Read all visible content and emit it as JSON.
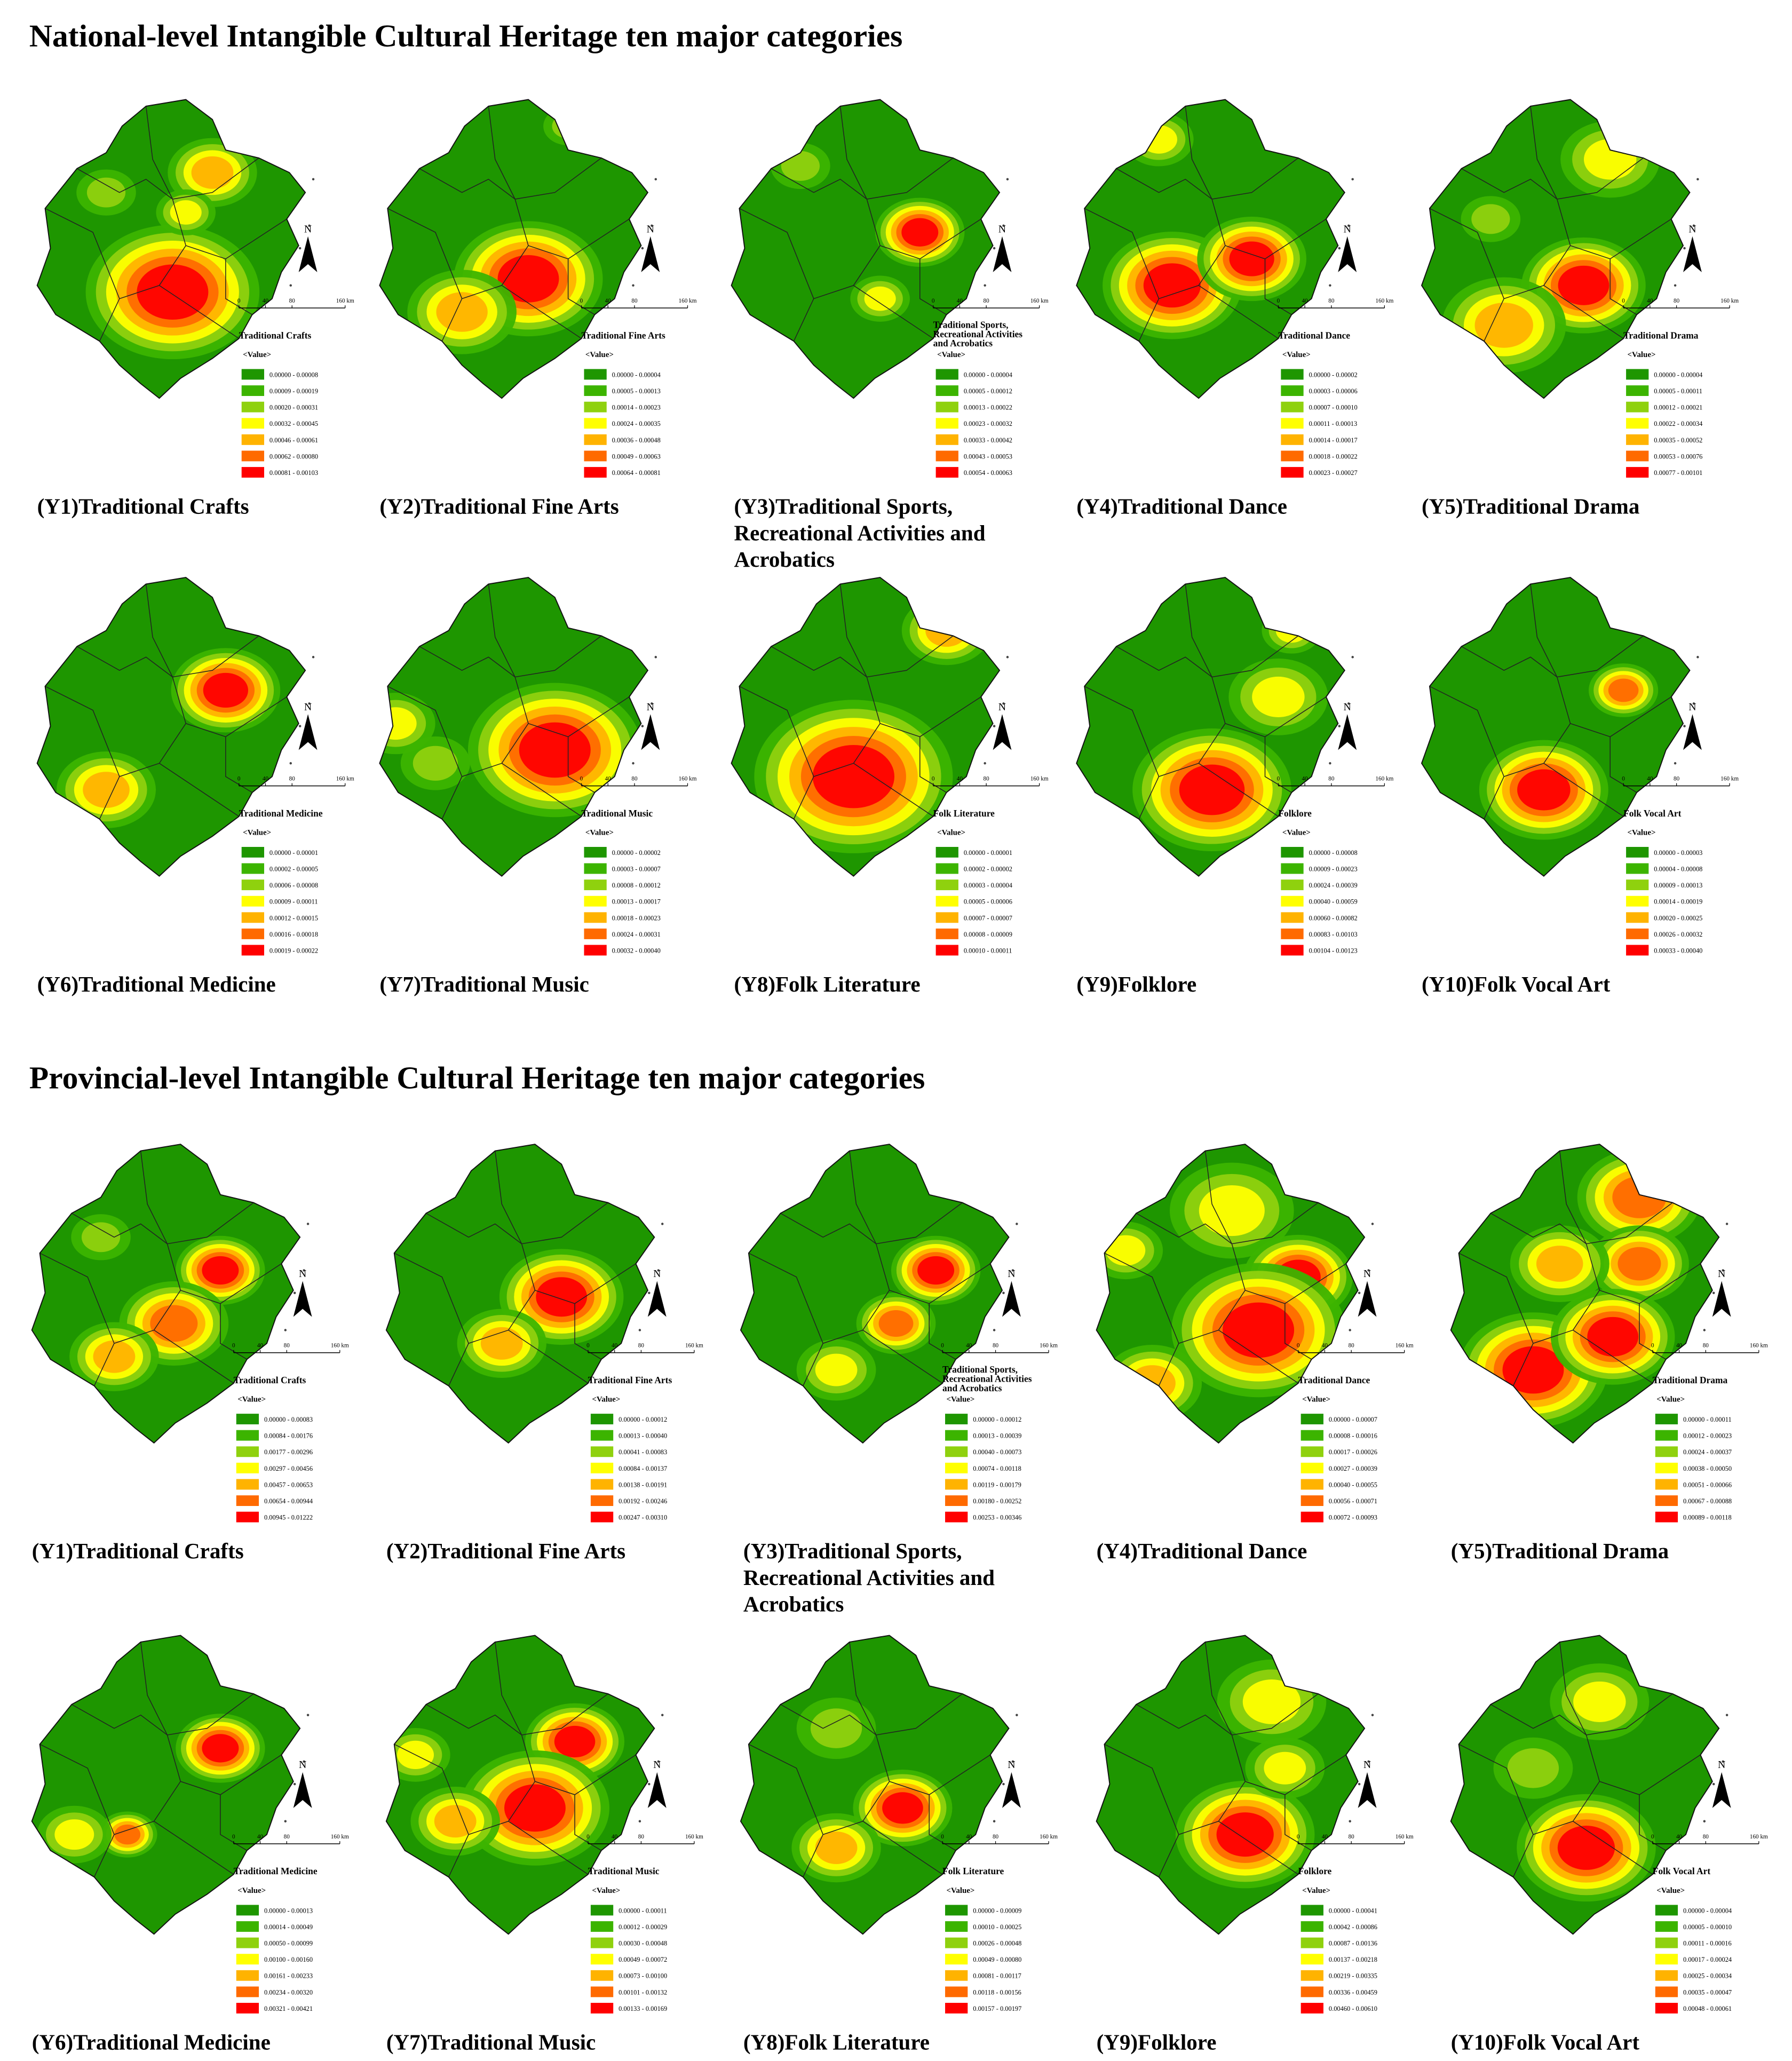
{
  "scale_labels": [
    "0",
    "40",
    "80",
    "160 km"
  ],
  "north": "N",
  "value_header": "<Value>",
  "class_colors": [
    "#1e9600",
    "#3cb400",
    "#8fd10e",
    "#ffff00",
    "#ffb300",
    "#ff6a00",
    "#ff0000"
  ],
  "sections": [
    {
      "title": "National-level Intangible Cultural Heritage ten major categories",
      "panels": [
        {
          "label": [
            "(Y1)Traditional Crafts"
          ],
          "legend_title": "Traditional Crafts",
          "ranges": [
            "0.00000 - 0.00008",
            "0.00009 - 0.00019",
            "0.00020 - 0.00031",
            "0.00032 - 0.00045",
            "0.00046 - 0.00061",
            "0.00062 - 0.00080",
            "0.00081 - 0.00103"
          ]
        },
        {
          "label": [
            "(Y2)Traditional Fine Arts"
          ],
          "legend_title": "Traditional Fine Arts",
          "ranges": [
            "0.00000 - 0.00004",
            "0.00005 - 0.00013",
            "0.00014 - 0.00023",
            "0.00024 - 0.00035",
            "0.00036 - 0.00048",
            "0.00049 - 0.00063",
            "0.00064 - 0.00081"
          ]
        },
        {
          "label": [
            "(Y3)Traditional Sports,",
            "Recreational Activities and",
            "Acrobatics"
          ],
          "legend_title": "Traditional Sports, Recreational Activities and Acrobatics",
          "ranges": [
            "0.00000 - 0.00004",
            "0.00005 - 0.00012",
            "0.00013 - 0.00022",
            "0.00023 - 0.00032",
            "0.00033 - 0.00042",
            "0.00043 - 0.00053",
            "0.00054 - 0.00063"
          ]
        },
        {
          "label": [
            "(Y4)Traditional Dance"
          ],
          "legend_title": "Traditional Dance",
          "ranges": [
            "0.00000 - 0.00002",
            "0.00003 - 0.00006",
            "0.00007 - 0.00010",
            "0.00011 - 0.00013",
            "0.00014 - 0.00017",
            "0.00018 - 0.00022",
            "0.00023 - 0.00027"
          ]
        },
        {
          "label": [
            "(Y5)Traditional Drama"
          ],
          "legend_title": "Traditional Drama",
          "ranges": [
            "0.00000 - 0.00004",
            "0.00005 - 0.00011",
            "0.00012 - 0.00021",
            "0.00022 - 0.00034",
            "0.00035 - 0.00052",
            "0.00053 - 0.00076",
            "0.00077 - 0.00101"
          ]
        },
        {
          "label": [
            "(Y6)Traditional Medicine"
          ],
          "legend_title": "Traditional Medicine",
          "ranges": [
            "0.00000 - 0.00001",
            "0.00002 - 0.00005",
            "0.00006 - 0.00008",
            "0.00009 - 0.00011",
            "0.00012 - 0.00015",
            "0.00016 - 0.00018",
            "0.00019 - 0.00022"
          ]
        },
        {
          "label": [
            "(Y7)Traditional Music"
          ],
          "legend_title": "Traditional Music",
          "ranges": [
            "0.00000 - 0.00002",
            "0.00003 - 0.00007",
            "0.00008 - 0.00012",
            "0.00013 - 0.00017",
            "0.00018 - 0.00023",
            "0.00024 - 0.00031",
            "0.00032 - 0.00040"
          ]
        },
        {
          "label": [
            "(Y8)Folk Literature"
          ],
          "legend_title": "Folk Literature",
          "ranges": [
            "0.00000 - 0.00001",
            "0.00002 - 0.00002",
            "0.00003 - 0.00004",
            "0.00005 - 0.00006",
            "0.00007 - 0.00007",
            "0.00008 - 0.00009",
            "0.00010 - 0.00011"
          ]
        },
        {
          "label": [
            "(Y9)Folklore"
          ],
          "legend_title": "Folklore",
          "ranges": [
            "0.00000 - 0.00008",
            "0.00009 - 0.00023",
            "0.00024 - 0.00039",
            "0.00040 - 0.00059",
            "0.00060 - 0.00082",
            "0.00083 - 0.00103",
            "0.00104 - 0.00123"
          ]
        },
        {
          "label": [
            "(Y10)Folk Vocal Art"
          ],
          "legend_title": "Folk Vocal Art",
          "ranges": [
            "0.00000 - 0.00003",
            "0.00004 - 0.00008",
            "0.00009 - 0.00013",
            "0.00014 - 0.00019",
            "0.00020 - 0.00025",
            "0.00026 - 0.00032",
            "0.00033 - 0.00040"
          ]
        }
      ]
    },
    {
      "title": "Provincial-level Intangible Cultural Heritage ten major categories",
      "panels": [
        {
          "label": [
            "(Y1)Traditional Crafts"
          ],
          "legend_title": "Traditional Crafts",
          "ranges": [
            "0.00000 - 0.00083",
            "0.00084 - 0.00176",
            "0.00177 - 0.00296",
            "0.00297 - 0.00456",
            "0.00457 - 0.00653",
            "0.00654 - 0.00944",
            "0.00945 - 0.01222"
          ]
        },
        {
          "label": [
            "(Y2)Traditional Fine Arts"
          ],
          "legend_title": "Traditional Fine Arts",
          "ranges": [
            "0.00000 - 0.00012",
            "0.00013 - 0.00040",
            "0.00041 - 0.00083",
            "0.00084 - 0.00137",
            "0.00138 - 0.00191",
            "0.00192 - 0.00246",
            "0.00247 - 0.00310"
          ]
        },
        {
          "label": [
            "(Y3)Traditional Sports,",
            "Recreational Activities and",
            "Acrobatics"
          ],
          "legend_title": "Traditional Sports, Recreational Activities and Acrobatics",
          "ranges": [
            "0.00000 - 0.00012",
            "0.00013 - 0.00039",
            "0.00040 - 0.00073",
            "0.00074 - 0.00118",
            "0.00119 - 0.00179",
            "0.00180 - 0.00252",
            "0.00253 - 0.00346"
          ]
        },
        {
          "label": [
            "(Y4)Traditional Dance"
          ],
          "legend_title": "Traditional Dance",
          "ranges": [
            "0.00000 - 0.00007",
            "0.00008 - 0.00016",
            "0.00017 - 0.00026",
            "0.00027 - 0.00039",
            "0.00040 - 0.00055",
            "0.00056 - 0.00071",
            "0.00072 - 0.00093"
          ]
        },
        {
          "label": [
            "(Y5)Traditional Drama"
          ],
          "legend_title": "Traditional Drama",
          "ranges": [
            "0.00000 - 0.00011",
            "0.00012 - 0.00023",
            "0.00024 - 0.00037",
            "0.00038 - 0.00050",
            "0.00051 - 0.00066",
            "0.00067 - 0.00088",
            "0.00089 - 0.00118"
          ]
        },
        {
          "label": [
            "(Y6)Traditional Medicine"
          ],
          "legend_title": "Traditional Medicine",
          "ranges": [
            "0.00000 - 0.00013",
            "0.00014 - 0.00049",
            "0.00050 - 0.00099",
            "0.00100 - 0.00160",
            "0.00161 - 0.00233",
            "0.00234 - 0.00320",
            "0.00321 - 0.00421"
          ]
        },
        {
          "label": [
            "(Y7)Traditional Music"
          ],
          "legend_title": "Traditional Music",
          "ranges": [
            "0.00000 - 0.00011",
            "0.00012 - 0.00029",
            "0.00030 - 0.00048",
            "0.00049 - 0.00072",
            "0.00073 - 0.00100",
            "0.00101 - 0.00132",
            "0.00133 - 0.00169"
          ]
        },
        {
          "label": [
            "(Y8)Folk Literature"
          ],
          "legend_title": "Folk Literature",
          "ranges": [
            "0.00000 - 0.00009",
            "0.00010 - 0.00025",
            "0.00026 - 0.00048",
            "0.00049 - 0.00080",
            "0.00081 - 0.00117",
            "0.00118 - 0.00156",
            "0.00157 - 0.00197"
          ]
        },
        {
          "label": [
            "(Y9)Folklore"
          ],
          "legend_title": "Folklore",
          "ranges": [
            "0.00000 - 0.00041",
            "0.00042 - 0.00086",
            "0.00087 - 0.00136",
            "0.00137 - 0.00218",
            "0.00219 - 0.00335",
            "0.00336 - 0.00459",
            "0.00460 - 0.00610"
          ]
        },
        {
          "label": [
            "(Y10)Folk Vocal Art"
          ],
          "legend_title": "Folk Vocal Art",
          "ranges": [
            "0.00000 - 0.00004",
            "0.00005 - 0.00010",
            "0.00011 - 0.00016",
            "0.00017 - 0.00024",
            "0.00025 - 0.00034",
            "0.00035 - 0.00047",
            "0.00048 - 0.00061"
          ]
        }
      ]
    }
  ]
}
